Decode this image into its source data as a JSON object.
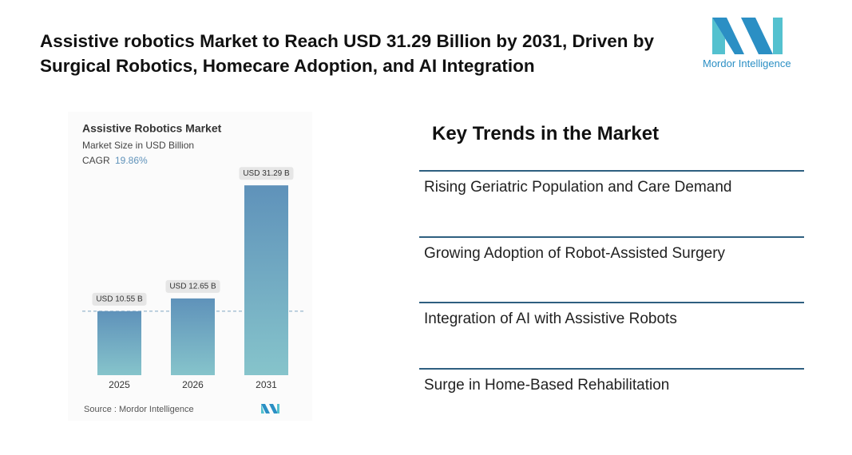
{
  "header": {
    "title": "Assistive robotics Market to Reach USD 31.29 Billion by 2031, Driven by Surgical Robotics, Homecare Adoption, and AI Integration",
    "logo_text": "Mordor Intelligence"
  },
  "chart_data": {
    "type": "bar",
    "title": "Assistive Robotics Market",
    "subtitle": "Market Size in USD Billion",
    "cagr_label": "CAGR",
    "cagr_value": "19.86%",
    "categories": [
      "2025",
      "2026",
      "2031"
    ],
    "values": [
      10.55,
      12.65,
      31.29
    ],
    "value_labels": [
      "USD 10.55 B",
      "USD 12.65 B",
      "USD 31.29 B"
    ],
    "colors": [
      "#5f92ba",
      "#86c4cb"
    ],
    "source": "Source :  Mordor Intelligence"
  },
  "trends": {
    "title": "Key Trends in the Market",
    "items": [
      "Rising Geriatric Population and Care Demand",
      "Growing Adoption of Robot-Assisted Surgery",
      "Integration of AI with Assistive Robots",
      "Surge in Home-Based Rehabilitation"
    ]
  }
}
